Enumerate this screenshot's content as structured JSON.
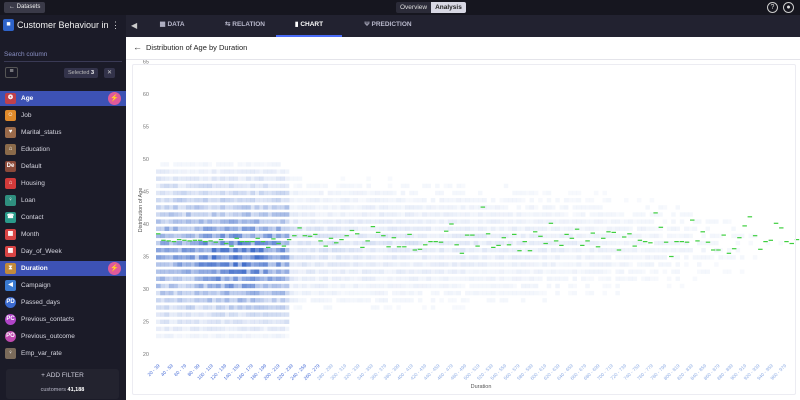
{
  "topbar": {
    "datasets_label": "Datasets",
    "views": [
      "Overview",
      "Analysis"
    ],
    "active_view": "Analysis"
  },
  "sidebar": {
    "dataset_title": "Customer Behaviour in B...",
    "search_placeholder": "Search column",
    "selected_label": "Selected",
    "selected_count": "3",
    "columns": [
      {
        "label": "Age",
        "icon": "age-icon",
        "active": true,
        "bolt": true
      },
      {
        "label": "Job",
        "icon": "job-icon"
      },
      {
        "label": "Marital_status",
        "icon": "marital-icon"
      },
      {
        "label": "Education",
        "icon": "education-icon"
      },
      {
        "label": "Default",
        "icon": "default-icon"
      },
      {
        "label": "Housing",
        "icon": "housing-icon"
      },
      {
        "label": "Loan",
        "icon": "loan-icon"
      },
      {
        "label": "Contact",
        "icon": "contact-icon"
      },
      {
        "label": "Month",
        "icon": "calendar-icon"
      },
      {
        "label": "Day_of_Week",
        "icon": "calendar-icon"
      },
      {
        "label": "Duration",
        "icon": "hourglass-icon",
        "active": true,
        "bolt": true
      },
      {
        "label": "Campaign",
        "icon": "megaphone-icon"
      },
      {
        "label": "Passed_days",
        "icon": "passed-days-icon"
      },
      {
        "label": "Previous_contacts",
        "icon": "previous-contacts-icon"
      },
      {
        "label": "Previous_outcome",
        "icon": "previous-outcome-icon"
      },
      {
        "label": "Emp_var_rate",
        "icon": "employment-icon"
      }
    ],
    "add_filter_label": "ADD FILTER",
    "customers_label": "customers",
    "customers_count": "41,188"
  },
  "tabs": [
    {
      "label": "DATA",
      "icon": "data-icon"
    },
    {
      "label": "RELATION",
      "icon": "relation-icon"
    },
    {
      "label": "CHART",
      "icon": "chart-icon",
      "active": true
    },
    {
      "label": "PREDICTION",
      "icon": "prediction-icon"
    }
  ],
  "main": {
    "chart_title": "Distribution of Age by Duration"
  },
  "chart_data": {
    "type": "heatmap",
    "title": "Distribution of Age by Duration",
    "xlabel": "Duration",
    "ylabel": "Distribution of Age",
    "y_ticks": [
      20,
      25,
      30,
      35,
      40,
      45,
      50,
      55,
      60,
      65
    ],
    "ylim": [
      20,
      65
    ],
    "x_tick_labels": [
      "20 - 39",
      "40 - 59",
      "60 - 79",
      "80 - 99",
      "100 - 119",
      "120 - 139",
      "140 - 159",
      "160 - 179",
      "180 - 199",
      "200 - 219",
      "220 - 239",
      "240 - 259",
      "260 - 279",
      "280 - 299",
      "300 - 319",
      "320 - 339",
      "340 - 359",
      "360 - 379",
      "380 - 399",
      "400 - 419",
      "420 - 439",
      "440 - 459",
      "460 - 479",
      "480 - 499",
      "500 - 519",
      "520 - 539",
      "540 - 559",
      "560 - 579",
      "580 - 599",
      "600 - 619",
      "620 - 639",
      "640 - 659",
      "660 - 679",
      "680 - 699",
      "700 - 719",
      "720 - 739",
      "740 - 759",
      "760 - 779",
      "780 - 799",
      "800 - 819",
      "820 - 839",
      "840 - 859",
      "860 - 879",
      "880 - 899",
      "900 - 919",
      "920 - 939",
      "940 - 959",
      "960 - 979"
    ],
    "mean_line_color": "#3ecf3e",
    "mean_age_by_duration": [
      38.5,
      37.5,
      37.4,
      37.3,
      37.6,
      37.5,
      37.4,
      37.5,
      37.5,
      37.3,
      37.4,
      37.2,
      37.6,
      37.0,
      36.6,
      37.8,
      37.3,
      37.3,
      37.3,
      37.8,
      37.3,
      36.4,
      37.7,
      37.0,
      36.6,
      37.6,
      38.2,
      39.4,
      38.2,
      38.1,
      38.4,
      37.4,
      36.6,
      37.8,
      37.1,
      37.6,
      38.2,
      39.0,
      38.5,
      36.4,
      37.4,
      39.6,
      38.7,
      38.2,
      36.5,
      37.9,
      36.5,
      36.5,
      38.4,
      36.0,
      36.1,
      36.8,
      37.3,
      37.3,
      37.2,
      38.9,
      40.0,
      36.8,
      35.5,
      38.3,
      38.3,
      36.6,
      42.6,
      38.5,
      36.4,
      36.7,
      37.9,
      36.8,
      38.4,
      35.9,
      37.3,
      35.9,
      38.8,
      38.1,
      37.0,
      40.1,
      37.4,
      36.7,
      38.4,
      37.8,
      39.2,
      36.7,
      37.4,
      38.6,
      36.5,
      37.8,
      38.8,
      38.7,
      36.0,
      38.0,
      38.5,
      36.6,
      37.5,
      37.3,
      37.1,
      41.7,
      39.5,
      37.2,
      35.0,
      37.3,
      37.3,
      37.2,
      40.6,
      37.4,
      38.8,
      37.2,
      36.0,
      36.0,
      38.3,
      35.5,
      36.2,
      37.9,
      39.7,
      41.1,
      38.2,
      36.1,
      37.3,
      37.5,
      40.1,
      39.4,
      37.3,
      37.0,
      37.6
    ]
  }
}
